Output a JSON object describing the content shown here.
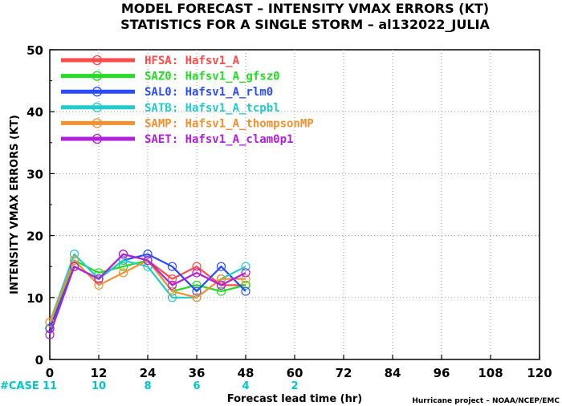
{
  "chart_data": {
    "type": "line",
    "title": "MODEL FORECAST – INTENSITY VMAX ERRORS (KT)",
    "subtitle": "STATISTICS FOR A SINGLE STORM – al132022_JULIA",
    "xlabel": "Forecast lead time (hr)",
    "ylabel": "INTENSITY VMAX ERRORS (KT)",
    "xlim": [
      0,
      120
    ],
    "ylim": [
      0,
      50
    ],
    "x_ticks": [
      "0",
      "12",
      "24",
      "36",
      "48",
      "60",
      "72",
      "84",
      "96",
      "108",
      "120"
    ],
    "y_ticks": [
      "0",
      "10",
      "20",
      "30",
      "40",
      "50"
    ],
    "grid": true,
    "legend_position": "top-left",
    "case_label": "#CASE",
    "case_color": "#00c8c8",
    "cases": [
      {
        "x": 0,
        "n": "11"
      },
      {
        "x": 12,
        "n": "10"
      },
      {
        "x": 24,
        "n": "8"
      },
      {
        "x": 36,
        "n": "6"
      },
      {
        "x": 48,
        "n": "4"
      },
      {
        "x": 60,
        "n": "2"
      }
    ],
    "credit": "Hurricane project – NOAA/NCEP/EMC",
    "x": [
      0,
      6,
      12,
      18,
      24,
      30,
      36,
      42,
      48
    ],
    "series": [
      {
        "name": "HFSA: Hafsv1_A",
        "color": "#ff4a4a",
        "values": [
          5,
          15,
          13,
          17,
          16,
          13,
          15,
          12,
          12
        ]
      },
      {
        "name": "SAZ0: Hafsv1_A_gfsz0",
        "color": "#22dd22",
        "values": [
          5,
          16,
          14,
          15,
          16,
          11,
          12,
          11,
          12
        ]
      },
      {
        "name": "SAL0: Hafsv1_A_rlm0",
        "color": "#2a4cff",
        "values": [
          5,
          15,
          13,
          16,
          17,
          15,
          11,
          15,
          11
        ]
      },
      {
        "name": "SATB: Hafsv1_A_tcpbl",
        "color": "#22cccc",
        "values": [
          6,
          17,
          13,
          16,
          15,
          10,
          10,
          13,
          15
        ]
      },
      {
        "name": "SAMP: Hafsv1_A_thompsonMP",
        "color": "#f39030",
        "values": [
          6,
          16,
          12,
          14,
          16,
          11,
          10,
          13,
          13
        ]
      },
      {
        "name": "SAET: Hafsv1_A_clam0p1",
        "color": "#b020d8",
        "values": [
          4,
          15,
          13,
          17,
          16,
          12,
          14,
          12,
          14
        ]
      }
    ]
  }
}
